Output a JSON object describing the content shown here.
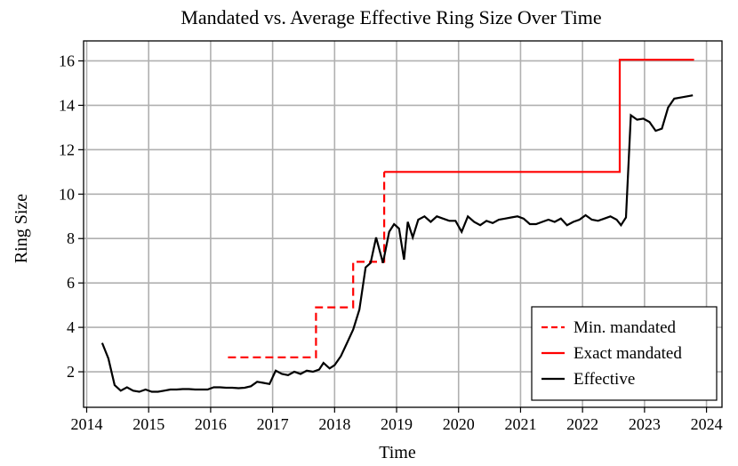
{
  "chart_data": {
    "type": "line",
    "title": "Mandated vs. Average Effective Ring Size Over Time",
    "xlabel": "Time",
    "ylabel": "Ring Size",
    "xlim": [
      2013.95,
      2024.25
    ],
    "ylim": [
      0.4,
      16.9
    ],
    "x_ticks": [
      2014,
      2015,
      2016,
      2017,
      2018,
      2019,
      2020,
      2021,
      2022,
      2023,
      2024
    ],
    "y_ticks": [
      2,
      4,
      6,
      8,
      10,
      12,
      14,
      16
    ],
    "grid": true,
    "legend_position": "bottom-right",
    "colors": {
      "min_mandated": "#ff0000",
      "exact_mandated": "#ff0000",
      "effective": "#000000",
      "grid": "#b0b0b0"
    },
    "series": [
      {
        "name": "Min. mandated",
        "style": "dashed",
        "x": [
          2016.28,
          2017.7,
          2017.7,
          2018.3,
          2018.3,
          2018.8,
          2018.8
        ],
        "y": [
          2.65,
          2.65,
          4.9,
          4.9,
          6.95,
          6.95,
          11
        ]
      },
      {
        "name": "Exact mandated",
        "style": "solid",
        "x": [
          2018.8,
          2022.6,
          2022.6,
          2023.8
        ],
        "y": [
          11,
          11,
          16.05,
          16.05
        ]
      },
      {
        "name": "Effective",
        "style": "solid",
        "x": [
          2014.25,
          2014.35,
          2014.45,
          2014.55,
          2014.65,
          2014.75,
          2014.85,
          2014.95,
          2015.05,
          2015.15,
          2015.25,
          2015.35,
          2015.45,
          2015.55,
          2015.65,
          2015.75,
          2015.85,
          2015.95,
          2016.05,
          2016.15,
          2016.25,
          2016.35,
          2016.45,
          2016.55,
          2016.65,
          2016.75,
          2016.85,
          2016.95,
          2017.05,
          2017.15,
          2017.25,
          2017.35,
          2017.45,
          2017.55,
          2017.65,
          2017.75,
          2017.82,
          2017.92,
          2018.0,
          2018.1,
          2018.2,
          2018.3,
          2018.4,
          2018.5,
          2018.58,
          2018.67,
          2018.78,
          2018.88,
          2018.96,
          2019.04,
          2019.12,
          2019.18,
          2019.26,
          2019.35,
          2019.45,
          2019.55,
          2019.65,
          2019.75,
          2019.85,
          2019.95,
          2020.05,
          2020.15,
          2020.25,
          2020.35,
          2020.45,
          2020.55,
          2020.65,
          2020.75,
          2020.85,
          2020.95,
          2021.05,
          2021.15,
          2021.25,
          2021.35,
          2021.45,
          2021.55,
          2021.65,
          2021.75,
          2021.85,
          2021.95,
          2022.05,
          2022.15,
          2022.25,
          2022.35,
          2022.45,
          2022.55,
          2022.62,
          2022.7,
          2022.78,
          2022.88,
          2022.98,
          2023.08,
          2023.18,
          2023.28,
          2023.38,
          2023.48,
          2023.58,
          2023.68,
          2023.78
        ],
        "y": [
          3.3,
          2.6,
          1.4,
          1.15,
          1.3,
          1.15,
          1.1,
          1.2,
          1.1,
          1.1,
          1.15,
          1.2,
          1.2,
          1.22,
          1.22,
          1.2,
          1.2,
          1.2,
          1.3,
          1.3,
          1.28,
          1.28,
          1.26,
          1.28,
          1.35,
          1.55,
          1.5,
          1.45,
          2.05,
          1.9,
          1.85,
          2.0,
          1.9,
          2.05,
          2.0,
          2.1,
          2.4,
          2.15,
          2.3,
          2.7,
          3.3,
          3.9,
          4.8,
          6.7,
          6.9,
          8.05,
          6.9,
          8.3,
          8.65,
          8.45,
          7.05,
          8.75,
          8.05,
          8.85,
          9.0,
          8.75,
          9.0,
          8.9,
          8.8,
          8.8,
          8.3,
          9.0,
          8.75,
          8.6,
          8.8,
          8.7,
          8.85,
          8.9,
          8.95,
          9.0,
          8.9,
          8.65,
          8.65,
          8.75,
          8.85,
          8.75,
          8.9,
          8.6,
          8.75,
          8.85,
          9.05,
          8.85,
          8.8,
          8.9,
          9.0,
          8.85,
          8.6,
          8.95,
          13.55,
          13.35,
          13.4,
          13.25,
          12.85,
          12.95,
          13.9,
          14.3,
          14.35,
          14.4,
          14.45
        ]
      }
    ]
  }
}
